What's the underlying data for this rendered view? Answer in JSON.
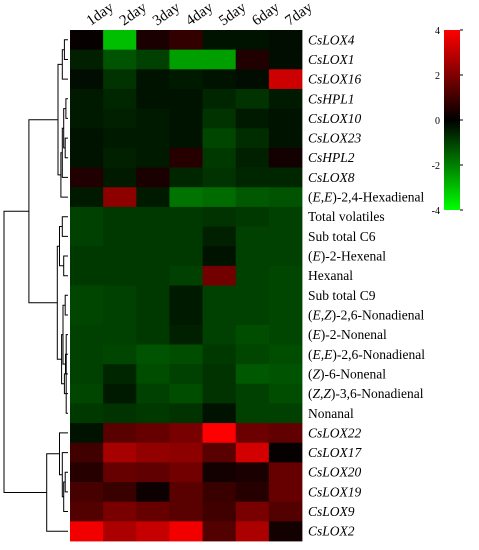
{
  "chart_data": {
    "type": "heatmap",
    "columns": [
      "1day",
      "2day",
      "3day",
      "4day",
      "5day",
      "6day",
      "7day"
    ],
    "rows": [
      {
        "prefix": "",
        "italic": "CsLOX4",
        "suffix": "",
        "values": [
          0.1,
          -3.0,
          0.4,
          0.8,
          -0.3,
          -0.3,
          -0.2
        ]
      },
      {
        "prefix": "",
        "italic": "CsLOX1",
        "suffix": "",
        "values": [
          -0.5,
          -1.3,
          -1.0,
          -2.5,
          -2.5,
          0.5,
          -0.2
        ]
      },
      {
        "prefix": "",
        "italic": "CsLOX16",
        "suffix": "",
        "values": [
          -0.2,
          -0.8,
          -0.3,
          -0.4,
          -0.3,
          -0.2,
          3.2
        ]
      },
      {
        "prefix": "",
        "italic": "CsHPL1",
        "suffix": "",
        "values": [
          -0.4,
          -0.6,
          -0.3,
          -0.3,
          -0.6,
          -0.8,
          -0.4
        ]
      },
      {
        "prefix": "",
        "italic": "CsLOX10",
        "suffix": "",
        "values": [
          -0.4,
          -0.5,
          -0.4,
          -0.3,
          -0.8,
          -0.4,
          -0.3
        ]
      },
      {
        "prefix": "",
        "italic": "CsLOX23",
        "suffix": "",
        "values": [
          -0.3,
          -0.4,
          -0.4,
          -0.3,
          -1.1,
          -0.7,
          -0.3
        ]
      },
      {
        "prefix": "",
        "italic": "CsHPL2",
        "suffix": "",
        "values": [
          -0.3,
          -0.5,
          -0.4,
          0.6,
          -0.9,
          -0.5,
          0.3
        ]
      },
      {
        "prefix": "",
        "italic": "CsLOX8",
        "suffix": "",
        "values": [
          0.5,
          -0.4,
          0.4,
          -0.6,
          -0.8,
          -0.6,
          -0.6
        ]
      },
      {
        "prefix": "(",
        "italic": "E,E",
        "suffix": ")-2,4-Hexadienal",
        "values": [
          -0.4,
          2.2,
          -0.4,
          -1.8,
          -1.7,
          -1.4,
          -1.3
        ]
      },
      {
        "prefix": "Total volatiles",
        "italic": "",
        "suffix": "",
        "values": [
          -1.0,
          -0.9,
          -0.9,
          -0.9,
          -0.8,
          -0.9,
          -1.0
        ]
      },
      {
        "prefix": "Sub total C6",
        "italic": "",
        "suffix": "",
        "values": [
          -1.0,
          -0.9,
          -0.9,
          -0.9,
          -0.5,
          -1.0,
          -1.0
        ]
      },
      {
        "prefix": "(",
        "italic": "E",
        "suffix": ")-2-Hexenal",
        "values": [
          -0.9,
          -0.9,
          -0.9,
          -0.9,
          -0.3,
          -1.0,
          -1.0
        ]
      },
      {
        "prefix": "Hexanal",
        "italic": "",
        "suffix": "",
        "values": [
          -0.9,
          -0.9,
          -0.9,
          -1.0,
          1.8,
          -1.0,
          -1.1
        ]
      },
      {
        "prefix": "Sub total C9",
        "italic": "",
        "suffix": "",
        "values": [
          -1.1,
          -1.0,
          -0.9,
          -0.4,
          -1.0,
          -1.0,
          -1.1
        ]
      },
      {
        "prefix": "(",
        "italic": "E,Z",
        "suffix": ")-2,6-Nonadienal",
        "values": [
          -1.1,
          -1.0,
          -0.9,
          -0.4,
          -1.0,
          -1.0,
          -1.1
        ]
      },
      {
        "prefix": "(",
        "italic": "E",
        "suffix": ")-2-Nonenal",
        "values": [
          -1.0,
          -1.0,
          -0.9,
          -0.5,
          -1.0,
          -1.2,
          -1.1
        ]
      },
      {
        "prefix": "(",
        "italic": "E,E",
        "suffix": ")-2,6-Nonadienal",
        "values": [
          -1.0,
          -1.1,
          -1.3,
          -1.2,
          -0.9,
          -1.1,
          -1.2
        ]
      },
      {
        "prefix": "(",
        "italic": "Z",
        "suffix": ")-6-Nonenal",
        "values": [
          -1.0,
          -0.6,
          -1.2,
          -1.0,
          -0.8,
          -1.4,
          -1.3
        ]
      },
      {
        "prefix": "(",
        "italic": "Z,Z",
        "suffix": ")-3,6-Nonadienal",
        "values": [
          -1.1,
          -0.4,
          -1.0,
          -1.2,
          -0.8,
          -1.0,
          -1.2
        ]
      },
      {
        "prefix": "Nonanal",
        "italic": "",
        "suffix": "",
        "values": [
          -0.9,
          -0.8,
          -0.9,
          -0.8,
          -0.3,
          -1.0,
          -1.0
        ]
      },
      {
        "prefix": "",
        "italic": "CsLOX22",
        "suffix": "",
        "values": [
          -0.3,
          1.4,
          1.6,
          1.9,
          4.0,
          1.7,
          1.5
        ]
      },
      {
        "prefix": "",
        "italic": "CsLOX17",
        "suffix": "",
        "values": [
          1.0,
          2.6,
          2.3,
          2.2,
          1.4,
          3.3,
          0.1
        ]
      },
      {
        "prefix": "",
        "italic": "CsLOX20",
        "suffix": "",
        "values": [
          0.6,
          1.6,
          1.5,
          1.8,
          0.3,
          0.4,
          1.6
        ]
      },
      {
        "prefix": "",
        "italic": "CsLOX19",
        "suffix": "",
        "values": [
          1.1,
          0.9,
          0.2,
          1.4,
          0.9,
          0.6,
          1.6
        ]
      },
      {
        "prefix": "",
        "italic": "CsLOX9",
        "suffix": "",
        "values": [
          1.3,
          1.9,
          1.6,
          1.4,
          1.0,
          1.9,
          1.3
        ]
      },
      {
        "prefix": "",
        "italic": "CsLOX2",
        "suffix": "",
        "values": [
          3.8,
          2.7,
          3.1,
          3.8,
          1.3,
          2.7,
          0.3
        ]
      }
    ],
    "color_scale": {
      "min": -4,
      "max": 4,
      "ticks": [
        4,
        2,
        0,
        -2,
        -4
      ],
      "low_color": "#00ff00",
      "mid_color": "#000000",
      "high_color": "#ff0000"
    },
    "dendrogram": {
      "leaf_order": [
        0,
        1,
        2,
        3,
        4,
        5,
        6,
        7,
        8,
        9,
        10,
        11,
        12,
        13,
        14,
        15,
        16,
        17,
        18,
        19,
        20,
        21,
        22,
        23,
        24,
        25
      ],
      "merges": [
        {
          "a": 19,
          "b": 15,
          "d": 2.5
        },
        {
          "a": 16,
          "b": 17,
          "d": 3.5
        },
        {
          "a": 13,
          "b": 14,
          "d": 4
        },
        {
          "a": 11,
          "b": 12,
          "d": 6
        },
        {
          "a": 9,
          "b": 10,
          "d": 8
        },
        {
          "a": 26,
          "b": 18,
          "d": 5
        },
        {
          "a": 27,
          "b": 28,
          "d": 7
        },
        {
          "a": 31,
          "b": 32,
          "d": 9
        },
        {
          "a": 29,
          "b": 30,
          "d": 12
        },
        {
          "a": 33,
          "b": 34,
          "d": 15
        },
        {
          "a": 3,
          "b": 4,
          "d": 3
        },
        {
          "a": 5,
          "b": 6,
          "d": 4
        },
        {
          "a": 36,
          "b": 37,
          "d": 6
        },
        {
          "a": 38,
          "b": 7,
          "d": 8
        },
        {
          "a": 39,
          "b": 8,
          "d": 10
        },
        {
          "a": 0,
          "b": 1,
          "d": 5
        },
        {
          "a": 41,
          "b": 2,
          "d": 8
        },
        {
          "a": 42,
          "b": 40,
          "d": 14
        },
        {
          "a": 43,
          "b": 35,
          "d": 55
        },
        {
          "a": 22,
          "b": 23,
          "d": 4
        },
        {
          "a": 45,
          "b": 24,
          "d": 6
        },
        {
          "a": 46,
          "b": 21,
          "d": 8
        },
        {
          "a": 47,
          "b": 20,
          "d": 12
        },
        {
          "a": 48,
          "b": 25,
          "d": 30
        },
        {
          "a": 44,
          "b": 49,
          "d": 90
        }
      ]
    }
  }
}
